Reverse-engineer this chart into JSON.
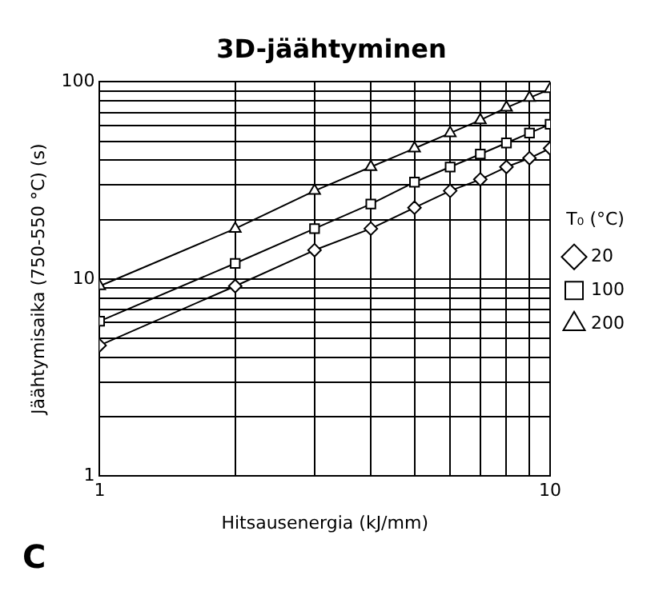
{
  "chart_data": {
    "type": "line",
    "title": "3D-jäähtyminen",
    "xlabel": "Hitsausenergia (kJ/mm)",
    "ylabel": "Jäähtymisaika (750-550 °C) (s)",
    "legend_title": "T₀ (°C)",
    "x": [
      1,
      2,
      3,
      4,
      5,
      6,
      7,
      8,
      9,
      10
    ],
    "series": [
      {
        "name": "20",
        "color": "#000000",
        "marker": "diamond",
        "values": [
          4.6,
          9.2,
          14,
          18,
          23,
          28,
          32,
          37,
          41,
          46
        ]
      },
      {
        "name": "100",
        "color": "#000000",
        "marker": "square",
        "values": [
          6.1,
          12,
          18,
          24,
          31,
          37,
          43,
          49,
          55,
          61
        ]
      },
      {
        "name": "200",
        "color": "#000000",
        "marker": "triangle",
        "values": [
          9.2,
          18,
          28,
          37,
          46,
          55,
          64,
          74,
          83,
          92
        ]
      }
    ],
    "log": "xy",
    "xlim": [
      1,
      10
    ],
    "ylim": [
      1,
      100
    ],
    "xticks": [
      1,
      {
        "value": 2,
        "label": null
      },
      {
        "value": 3,
        "label": null
      },
      {
        "value": 4,
        "label": null
      },
      {
        "value": 5,
        "label": null
      },
      {
        "value": 6,
        "label": null
      },
      {
        "value": 7,
        "label": null
      },
      {
        "value": 8,
        "label": null
      },
      {
        "value": 9,
        "label": null
      },
      10
    ],
    "yticks": [
      1,
      {
        "value": 2,
        "label": null
      },
      {
        "value": 3,
        "label": null
      },
      {
        "value": 4,
        "label": null
      },
      {
        "value": 5,
        "label": null
      },
      {
        "value": 6,
        "label": null
      },
      {
        "value": 7,
        "label": null
      },
      {
        "value": 8,
        "label": null
      },
      {
        "value": 9,
        "label": null
      },
      10,
      {
        "value": 20,
        "label": null
      },
      {
        "value": 30,
        "label": null
      },
      {
        "value": 40,
        "label": null
      },
      {
        "value": 50,
        "label": null
      },
      {
        "value": 60,
        "label": null
      },
      {
        "value": 70,
        "label": null
      },
      {
        "value": 80,
        "label": null
      },
      {
        "value": 90,
        "label": null
      },
      100
    ],
    "grid": true,
    "legend": "right",
    "line_style": "solid",
    "annotations": [
      "C"
    ]
  }
}
